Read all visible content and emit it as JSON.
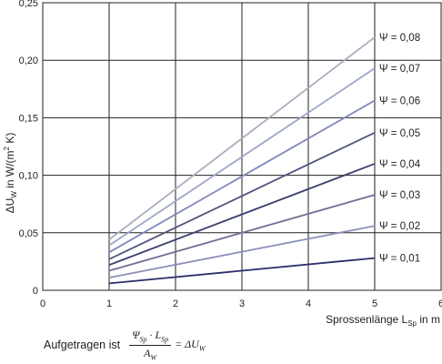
{
  "chart_data": {
    "type": "line",
    "xlabel": "Sprossenlänge L",
    "xlabel_sub": "Sp",
    "xlabel_unit": " in m",
    "ylabel": "ΔU",
    "ylabel_sub": "W",
    "ylabel_unit": " in W/(m",
    "ylabel_sup": "2",
    "ylabel_end": " K)",
    "xlim": [
      0,
      6
    ],
    "ylim": [
      0,
      0.25
    ],
    "x_ticks": [
      "0",
      "1",
      "2",
      "3",
      "4",
      "5",
      "6"
    ],
    "y_ticks": [
      "0",
      "0,05",
      "0,10",
      "0,15",
      "0,20",
      "0,25"
    ],
    "grid": true,
    "x": [
      1,
      5
    ],
    "series": [
      {
        "name": "Ψ = 0,08",
        "values": [
          0.044,
          0.22
        ],
        "color": "#a8aebf"
      },
      {
        "name": "Ψ = 0,07",
        "values": [
          0.039,
          0.193
        ],
        "color": "#9da6c8"
      },
      {
        "name": "Ψ = 0,06",
        "values": [
          0.033,
          0.165
        ],
        "color": "#8088bd"
      },
      {
        "name": "Ψ = 0,05",
        "values": [
          0.027,
          0.137
        ],
        "color": "#505679"
      },
      {
        "name": "Ψ = 0,04",
        "values": [
          0.022,
          0.11
        ],
        "color": "#3c4170"
      },
      {
        "name": "Ψ = 0,03",
        "values": [
          0.017,
          0.083
        ],
        "color": "#6f6f95"
      },
      {
        "name": "Ψ = 0,02",
        "values": [
          0.011,
          0.056
        ],
        "color": "#8a8fb9"
      },
      {
        "name": "Ψ = 0,01",
        "values": [
          0.006,
          0.028
        ],
        "color": "#2c2e6a"
      }
    ]
  },
  "note": {
    "prefix": "Aufgetragen ist",
    "num_psi": "Ψ",
    "num_psi_sub": "Sp",
    "num_dot": " · ",
    "num_l": "L",
    "num_l_sub": "Sp",
    "den": "A",
    "den_sub": "W",
    "eq": "= ΔU",
    "eq_sub": "W"
  }
}
